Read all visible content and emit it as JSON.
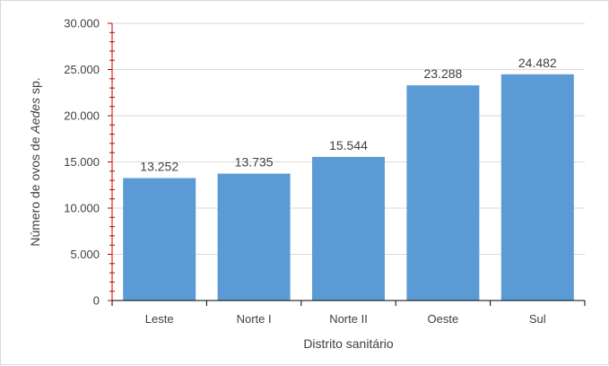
{
  "chart_data": {
    "type": "bar",
    "categories": [
      "Leste",
      "Norte I",
      "Norte II",
      "Oeste",
      "Sul"
    ],
    "values": [
      13252,
      13735,
      15544,
      23288,
      24482
    ],
    "value_labels": [
      "13.252",
      "13.735",
      "15.544",
      "23.288",
      "24.482"
    ],
    "xlabel": "Distrito sanitário",
    "ylabel_prefix": "Número de ovos de ",
    "ylabel_italic": "Aedes",
    "ylabel_suffix": " sp.",
    "ylim": [
      0,
      30000
    ],
    "yticks": [
      0,
      5000,
      10000,
      15000,
      20000,
      25000,
      30000
    ],
    "ytick_labels": [
      "0",
      "5.000",
      "10.000",
      "15.000",
      "20.000",
      "25.000",
      "30.000"
    ],
    "grid": true,
    "bar_color": "#5b9bd5",
    "y_axis_color": "#c00000",
    "grid_color": "#d9d9d9"
  }
}
